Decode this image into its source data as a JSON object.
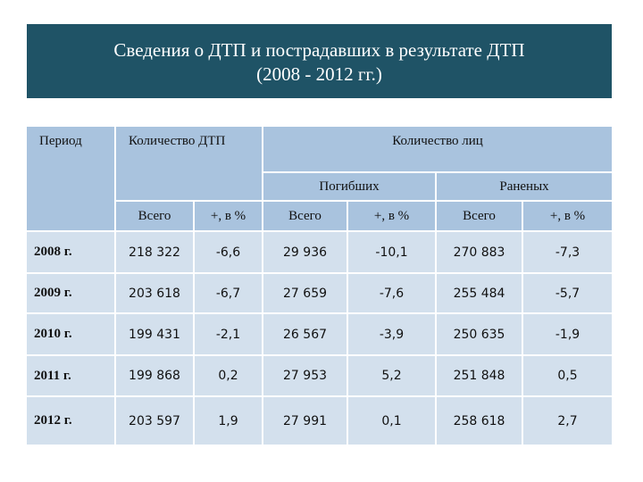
{
  "header": {
    "title": [
      "Сведения о ДТП и пострадавших в результате ДТП",
      "(2008 - 2012 гг.)"
    ]
  },
  "table": {
    "header": {
      "period": "Период",
      "accidents": "Количество ДТП",
      "persons": "Количество лиц",
      "killed": "Погибших",
      "injured": "Раненых",
      "subcolumns": [
        "Всего",
        "+, в %",
        "Всего",
        "+, в %",
        "Всего",
        "+, в %"
      ]
    },
    "rows": [
      [
        "2008 г.",
        "218 322",
        "-6,6",
        "29 936",
        "-10,1",
        "270 883",
        "-7,3"
      ],
      [
        "2009 г.",
        "203 618",
        "-6,7",
        "27 659",
        "-7,6",
        "255 484",
        "-5,7"
      ],
      [
        "2010 г.",
        "199 431",
        "-2,1",
        "26 567",
        "-3,9",
        "250 635",
        "-1,9"
      ],
      [
        "2011 г.",
        "199 868",
        "0,2",
        "27 953",
        "5,2",
        "251 848",
        "0,5"
      ],
      [
        "2012 г.",
        "203 597",
        "1,9",
        "27 991",
        "0,1",
        "258 618",
        "2,7"
      ]
    ]
  }
}
